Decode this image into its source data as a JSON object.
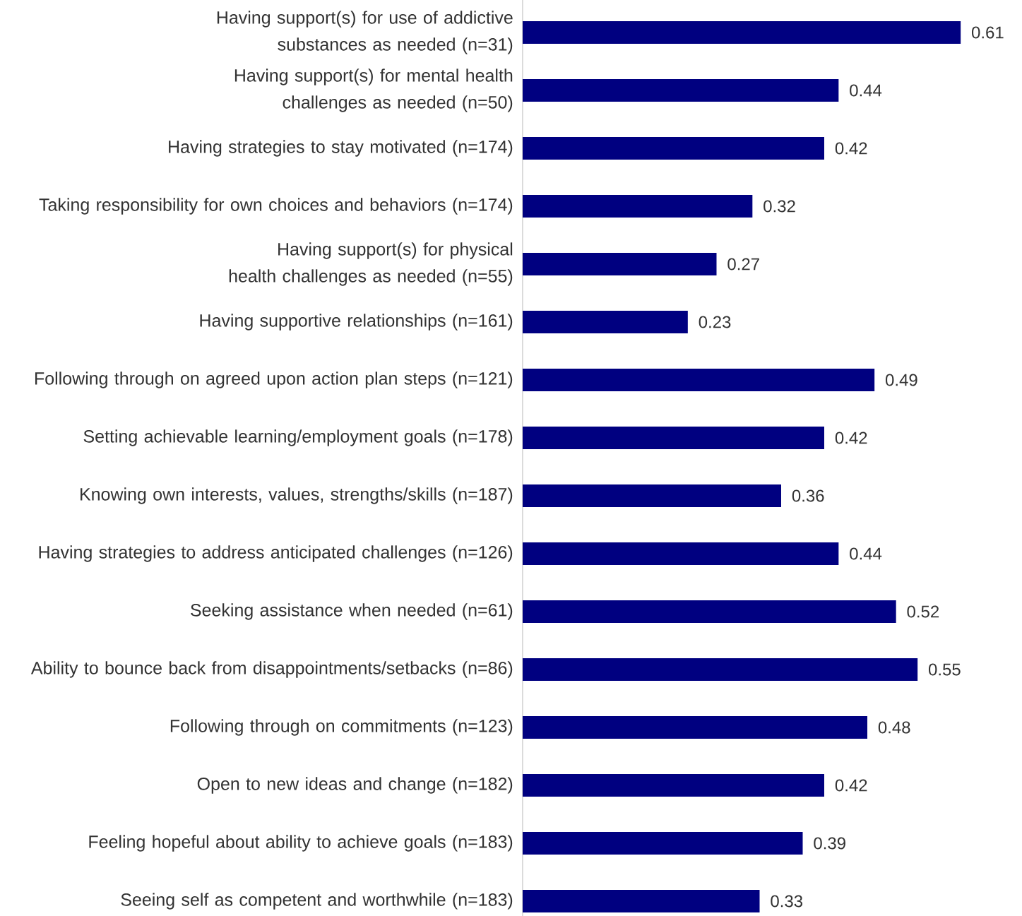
{
  "chart_data": {
    "type": "bar",
    "orientation": "horizontal",
    "data_labels": true,
    "color": "#000080",
    "categories": [
      "Having support(s) for use of addictive substances as needed (n=31)",
      "Having support(s) for mental health challenges as needed (n=50)",
      "Having strategies to stay motivated (n=174)",
      "Taking responsibility for own choices and behaviors (n=174)",
      "Having support(s) for physical health challenges as needed (n=55)",
      "Having supportive relationships (n=161)",
      "Following through on agreed upon action plan steps (n=121)",
      "Setting achievable learning/employment goals (n=178)",
      "Knowing own interests, values, strengths/skills (n=187)",
      "Having strategies to address anticipated challenges (n=126)",
      "Seeking assistance when needed (n=61)",
      "Ability to bounce back from disappointments/setbacks (n=86)",
      "Following through on commitments (n=123)",
      "Open to new ideas and change (n=182)",
      "Feeling hopeful about ability to achieve goals (n=183)",
      "Seeing self as competent and worthwhile (n=183)"
    ],
    "values": [
      0.61,
      0.44,
      0.42,
      0.32,
      0.27,
      0.23,
      0.49,
      0.42,
      0.36,
      0.44,
      0.52,
      0.55,
      0.48,
      0.42,
      0.39,
      0.33
    ]
  }
}
